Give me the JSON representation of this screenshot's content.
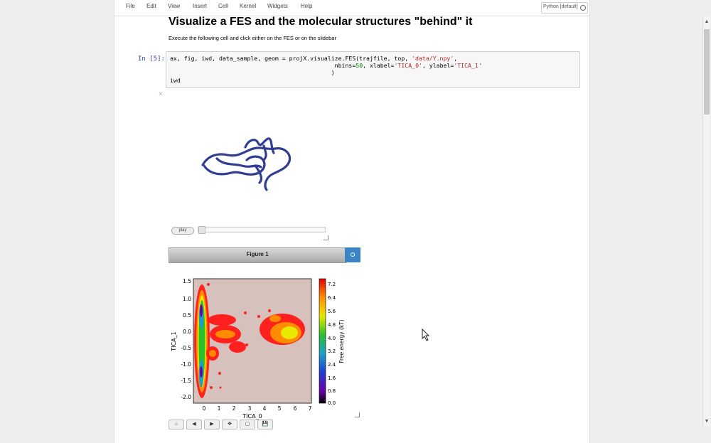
{
  "menubar": {
    "items": [
      "File",
      "Edit",
      "View",
      "Insert",
      "Cell",
      "Kernel",
      "Widgets",
      "Help"
    ],
    "kernel": "Python [default]"
  },
  "notebook": {
    "title": "Visualize a FES and the molecular structures \"behind\" it",
    "instruction": "Execute the following cell and click either on the FES or on the slidebar",
    "prompt": "In [5]:",
    "code": {
      "line1_a": "ax, fig, iwd, data_sample, geom = projX.visualize.FES(trajfile, top, ",
      "line1_str": "'data/Y.npy'",
      "line1_b": ",",
      "line2_a": "                                               nbins=",
      "line2_num": "50",
      "line2_b": ", xlabel=",
      "line2_str1": "'TICA_0'",
      "line2_c": ", ylabel=",
      "line2_str2": "'TICA_1'",
      "line3": "                                              )",
      "line4": "iwd"
    },
    "output_toggle": "×"
  },
  "widget": {
    "play_label": "play",
    "figure_title": "Figure 1"
  },
  "plot": {
    "xlabel": "TICA_0",
    "ylabel": "TICA_1",
    "xticks": [
      "0",
      "1",
      "2",
      "3",
      "4",
      "5",
      "6",
      "7"
    ],
    "yticks": [
      "1.5",
      "1.0",
      "0.5",
      "0.0",
      "-0.5",
      "-1.0",
      "-1.5",
      "-2.0"
    ],
    "colorbar_label": "Free energy (kT)",
    "colorbar_ticks": [
      "7.2",
      "6.4",
      "5.6",
      "4.8",
      "4.0",
      "3.2",
      "2.4",
      "1.6",
      "0.8",
      "0.0"
    ],
    "background_color": "#d6c1bc"
  },
  "toolbar": {
    "buttons": [
      "⌂",
      "◀",
      "▶",
      "✥",
      "▢",
      "💾"
    ]
  }
}
